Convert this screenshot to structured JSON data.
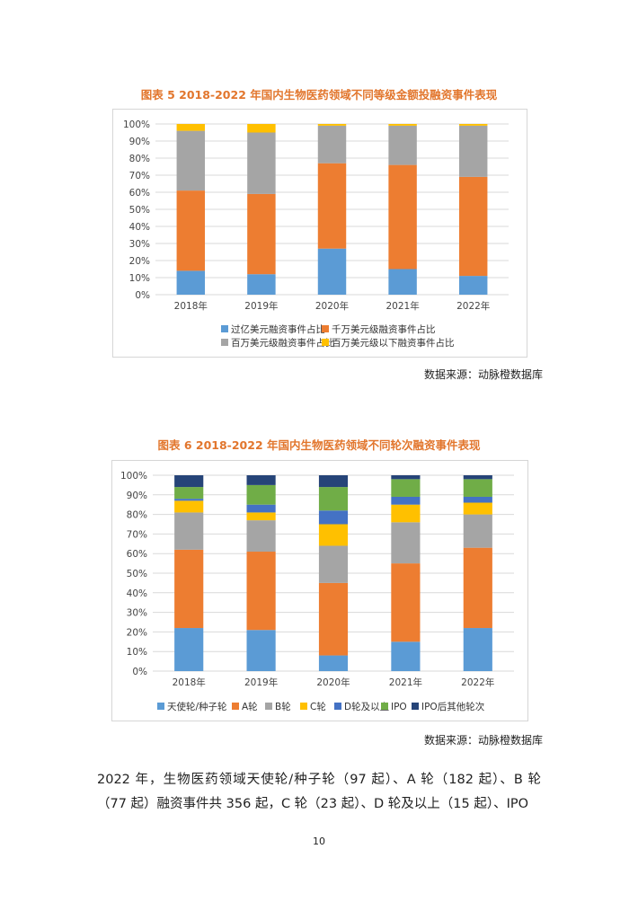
{
  "figure5": {
    "title": "图表 5 2018-2022 年国内生物医药领域不同等级金额投融资事件表现",
    "source": "数据来源：动脉橙数据库"
  },
  "figure6": {
    "title": "图表 6 2018-2022 年国内生物医药领域不同轮次融资事件表现",
    "source": "数据来源：动脉橙数据库"
  },
  "paragraph": "2022 年，生物医药领域天使轮/种子轮（97 起）、A 轮（182 起）、B 轮（77 起）融资事件共 356 起，C 轮（23 起）、D 轮及以上（15 起）、IPO",
  "page_number": "10",
  "chart_data": [
    {
      "type": "bar",
      "stacked": true,
      "categories": [
        "2018年",
        "2019年",
        "2020年",
        "2021年",
        "2022年"
      ],
      "ylim": [
        0,
        100
      ],
      "yticks": [
        "0%",
        "10%",
        "20%",
        "30%",
        "40%",
        "50%",
        "60%",
        "70%",
        "80%",
        "90%",
        "100%"
      ],
      "grid": true,
      "legend_position": "bottom",
      "series": [
        {
          "name": "过亿美元融资事件占比",
          "color": "#5B9BD5",
          "values": [
            14,
            12,
            27,
            15,
            11
          ]
        },
        {
          "name": "千万美元级融资事件占比",
          "color": "#ED7D31",
          "values": [
            47,
            47,
            50,
            61,
            58
          ]
        },
        {
          "name": "百万美元级融资事件占比",
          "color": "#A5A5A5",
          "values": [
            35,
            36,
            22,
            23,
            30
          ]
        },
        {
          "name": "百万美元级以下融资事件占比",
          "color": "#FFC000",
          "values": [
            4,
            5,
            1,
            1,
            1
          ]
        }
      ]
    },
    {
      "type": "bar",
      "stacked": true,
      "categories": [
        "2018年",
        "2019年",
        "2020年",
        "2021年",
        "2022年"
      ],
      "ylim": [
        0,
        100
      ],
      "yticks": [
        "0%",
        "10%",
        "20%",
        "30%",
        "40%",
        "50%",
        "60%",
        "70%",
        "80%",
        "90%",
        "100%"
      ],
      "grid": true,
      "legend_position": "bottom",
      "series": [
        {
          "name": "天使轮/种子轮",
          "color": "#5B9BD5",
          "values": [
            22,
            21,
            8,
            15,
            22
          ]
        },
        {
          "name": "A轮",
          "color": "#ED7D31",
          "values": [
            40,
            40,
            37,
            40,
            41
          ]
        },
        {
          "name": "B轮",
          "color": "#A5A5A5",
          "values": [
            19,
            16,
            19,
            21,
            17
          ]
        },
        {
          "name": "C轮",
          "color": "#FFC000",
          "values": [
            6,
            4,
            11,
            9,
            6
          ]
        },
        {
          "name": "D轮及以上",
          "color": "#4472C4",
          "values": [
            1,
            4,
            7,
            4,
            3
          ]
        },
        {
          "name": "IPO",
          "color": "#70AD47",
          "values": [
            6,
            10,
            12,
            9,
            9
          ]
        },
        {
          "name": "IPO后其他轮次",
          "color": "#264478",
          "values": [
            6,
            5,
            6,
            2,
            2
          ]
        }
      ]
    }
  ]
}
